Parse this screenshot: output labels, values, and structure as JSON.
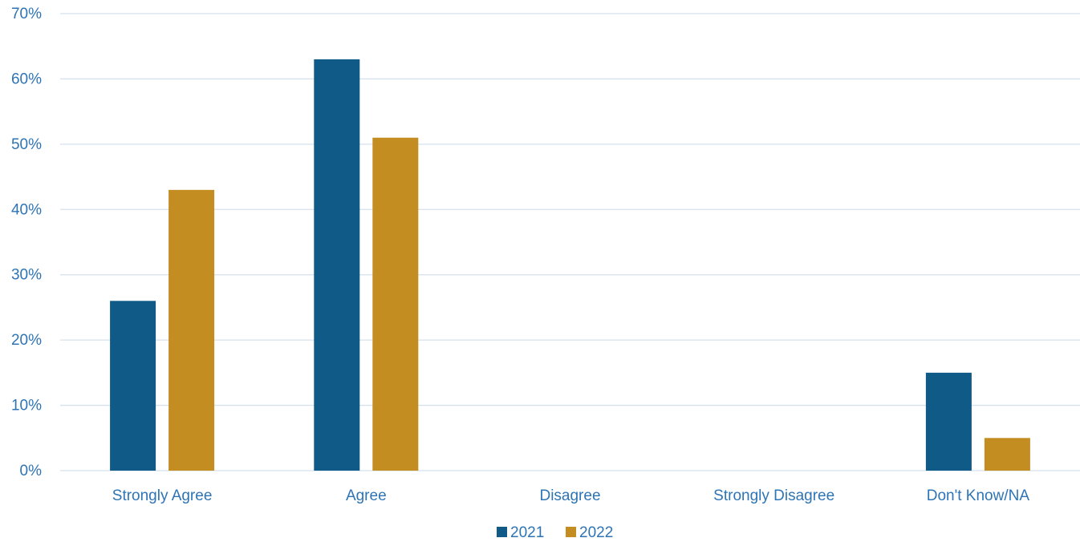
{
  "chart_data": {
    "type": "bar",
    "categories": [
      "Strongly Agree",
      "Agree",
      "Disagree",
      "Strongly Disagree",
      "Don't Know/NA"
    ],
    "series": [
      {
        "name": "2021",
        "values": [
          26,
          63,
          0,
          0,
          15
        ],
        "color": "#0F5A87"
      },
      {
        "name": "2022",
        "values": [
          43,
          51,
          0,
          0,
          5
        ],
        "color": "#C48D22"
      }
    ],
    "y_ticks": [
      "0%",
      "10%",
      "20%",
      "30%",
      "40%",
      "50%",
      "60%",
      "70%"
    ],
    "ylim": [
      0,
      70
    ],
    "y_unit": "%",
    "grid": true,
    "legend_position": "bottom-center",
    "colors": {
      "text": "#2E74B5",
      "grid": "#D6E1EC"
    }
  }
}
